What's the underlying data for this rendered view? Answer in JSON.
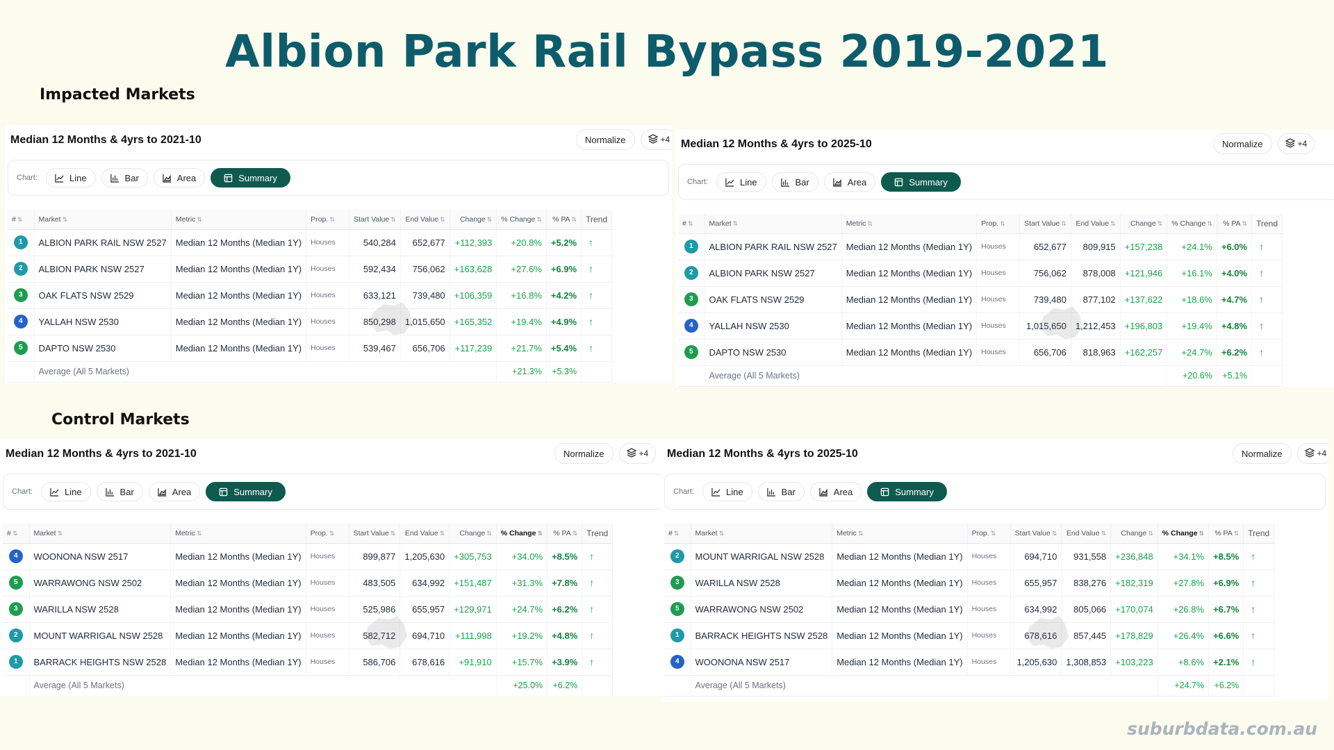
{
  "page": {
    "title": "Albion Park Rail Bypass 2019-2021",
    "impacted_label": "Impacted Markets",
    "control_label": "Control Markets",
    "brand": "suburbdata.com.au"
  },
  "colors": {
    "title": "#0d5c6b",
    "active_tab": "#0f5a4f",
    "positive": "#16a34a",
    "rank_teal": "#1e9aa8",
    "rank_blue": "#2563c4",
    "rank_green": "#1f9d4f"
  },
  "controls": {
    "normalize": "Normalize",
    "layers_count": "+4",
    "chart_label": "Chart:",
    "line": "Line",
    "bar": "Bar",
    "area": "Area",
    "summary": "Summary"
  },
  "columns": {
    "rank": "#",
    "market": "Market",
    "metric": "Metric",
    "prop": "Prop.",
    "start": "Start Value",
    "end": "End Value",
    "change": "Change",
    "pct": "% Change",
    "pa": "% PA",
    "trend": "Trend"
  },
  "panels": [
    {
      "id": "impacted-2021",
      "title": "Median 12 Months & 4yrs to 2021-10",
      "rows": [
        {
          "rank": "1",
          "rank_color": "teal",
          "market": "ALBION PARK RAIL NSW 2527",
          "metric": "Median 12 Months (Median 1Y)",
          "prop": "Houses",
          "start": "540,284",
          "end": "652,677",
          "change": "+112,393",
          "pct": "+20.8%",
          "pa": "+5.2%",
          "trend": "↑"
        },
        {
          "rank": "2",
          "rank_color": "teal",
          "market": "ALBION PARK NSW 2527",
          "metric": "Median 12 Months (Median 1Y)",
          "prop": "Houses",
          "start": "592,434",
          "end": "756,062",
          "change": "+163,628",
          "pct": "+27.6%",
          "pa": "+6.9%",
          "trend": "↑"
        },
        {
          "rank": "3",
          "rank_color": "green",
          "market": "OAK FLATS NSW 2529",
          "metric": "Median 12 Months (Median 1Y)",
          "prop": "Houses",
          "start": "633,121",
          "end": "739,480",
          "change": "+106,359",
          "pct": "+16.8%",
          "pa": "+4.2%",
          "trend": "↑"
        },
        {
          "rank": "4",
          "rank_color": "blue",
          "market": "YALLAH NSW 2530",
          "metric": "Median 12 Months (Median 1Y)",
          "prop": "Houses",
          "start": "850,298",
          "end": "1,015,650",
          "change": "+165,352",
          "pct": "+19.4%",
          "pa": "+4.9%",
          "trend": "↑"
        },
        {
          "rank": "5",
          "rank_color": "green",
          "market": "DAPTO NSW 2530",
          "metric": "Median 12 Months (Median 1Y)",
          "prop": "Houses",
          "start": "539,467",
          "end": "656,706",
          "change": "+117,239",
          "pct": "+21.7%",
          "pa": "+5.4%",
          "trend": "↑"
        }
      ],
      "average": {
        "label": "Average (All 5 Markets)",
        "pct": "+21.3%",
        "pa": "+5.3%"
      }
    },
    {
      "id": "impacted-2025",
      "title": "Median 12 Months & 4yrs to 2025-10",
      "rows": [
        {
          "rank": "1",
          "rank_color": "teal",
          "market": "ALBION PARK RAIL NSW 2527",
          "metric": "Median 12 Months (Median 1Y)",
          "prop": "Houses",
          "start": "652,677",
          "end": "809,915",
          "change": "+157,238",
          "pct": "+24.1%",
          "pa": "+6.0%",
          "trend": "↑"
        },
        {
          "rank": "2",
          "rank_color": "teal",
          "market": "ALBION PARK NSW 2527",
          "metric": "Median 12 Months (Median 1Y)",
          "prop": "Houses",
          "start": "756,062",
          "end": "878,008",
          "change": "+121,946",
          "pct": "+16.1%",
          "pa": "+4.0%",
          "trend": "↑"
        },
        {
          "rank": "3",
          "rank_color": "green",
          "market": "OAK FLATS NSW 2529",
          "metric": "Median 12 Months (Median 1Y)",
          "prop": "Houses",
          "start": "739,480",
          "end": "877,102",
          "change": "+137,622",
          "pct": "+18.6%",
          "pa": "+4.7%",
          "trend": "↑"
        },
        {
          "rank": "4",
          "rank_color": "blue",
          "market": "YALLAH NSW 2530",
          "metric": "Median 12 Months (Median 1Y)",
          "prop": "Houses",
          "start": "1,015,650",
          "end": "1,212,453",
          "change": "+196,803",
          "pct": "+19.4%",
          "pa": "+4.8%",
          "trend": "↑"
        },
        {
          "rank": "5",
          "rank_color": "green",
          "market": "DAPTO NSW 2530",
          "metric": "Median 12 Months (Median 1Y)",
          "prop": "Houses",
          "start": "656,706",
          "end": "818,963",
          "change": "+162,257",
          "pct": "+24.7%",
          "pa": "+6.2%",
          "trend": "↑"
        }
      ],
      "average": {
        "label": "Average (All 5 Markets)",
        "pct": "+20.6%",
        "pa": "+5.1%"
      }
    },
    {
      "id": "control-2021",
      "title": "Median 12 Months & 4yrs to 2021-10",
      "rows": [
        {
          "rank": "4",
          "rank_color": "blue",
          "market": "WOONONA NSW 2517",
          "metric": "Median 12 Months (Median 1Y)",
          "prop": "Houses",
          "start": "899,877",
          "end": "1,205,630",
          "change": "+305,753",
          "pct": "+34.0%",
          "pa": "+8.5%",
          "trend": "↑"
        },
        {
          "rank": "5",
          "rank_color": "green",
          "market": "WARRAWONG NSW 2502",
          "metric": "Median 12 Months (Median 1Y)",
          "prop": "Houses",
          "start": "483,505",
          "end": "634,992",
          "change": "+151,487",
          "pct": "+31.3%",
          "pa": "+7.8%",
          "trend": "↑"
        },
        {
          "rank": "3",
          "rank_color": "green",
          "market": "WARILLA NSW 2528",
          "metric": "Median 12 Months (Median 1Y)",
          "prop": "Houses",
          "start": "525,986",
          "end": "655,957",
          "change": "+129,971",
          "pct": "+24.7%",
          "pa": "+6.2%",
          "trend": "↑"
        },
        {
          "rank": "2",
          "rank_color": "teal",
          "market": "MOUNT WARRIGAL NSW 2528",
          "metric": "Median 12 Months (Median 1Y)",
          "prop": "Houses",
          "start": "582,712",
          "end": "694,710",
          "change": "+111,998",
          "pct": "+19.2%",
          "pa": "+4.8%",
          "trend": "↑"
        },
        {
          "rank": "1",
          "rank_color": "teal",
          "market": "BARRACK HEIGHTS NSW 2528",
          "metric": "Median 12 Months (Median 1Y)",
          "prop": "Houses",
          "start": "586,706",
          "end": "678,616",
          "change": "+91,910",
          "pct": "+15.7%",
          "pa": "+3.9%",
          "trend": "↑"
        }
      ],
      "average": {
        "label": "Average (All 5 Markets)",
        "pct": "+25.0%",
        "pa": "+6.2%"
      }
    },
    {
      "id": "control-2025",
      "title": "Median 12 Months & 4yrs to 2025-10",
      "rows": [
        {
          "rank": "2",
          "rank_color": "teal",
          "market": "MOUNT WARRIGAL NSW 2528",
          "metric": "Median 12 Months (Median 1Y)",
          "prop": "Houses",
          "start": "694,710",
          "end": "931,558",
          "change": "+236,848",
          "pct": "+34.1%",
          "pa": "+8.5%",
          "trend": "↑"
        },
        {
          "rank": "3",
          "rank_color": "green",
          "market": "WARILLA NSW 2528",
          "metric": "Median 12 Months (Median 1Y)",
          "prop": "Houses",
          "start": "655,957",
          "end": "838,276",
          "change": "+182,319",
          "pct": "+27.8%",
          "pa": "+6.9%",
          "trend": "↑"
        },
        {
          "rank": "5",
          "rank_color": "green",
          "market": "WARRAWONG NSW 2502",
          "metric": "Median 12 Months (Median 1Y)",
          "prop": "Houses",
          "start": "634,992",
          "end": "805,066",
          "change": "+170,074",
          "pct": "+26.8%",
          "pa": "+6.7%",
          "trend": "↑"
        },
        {
          "rank": "1",
          "rank_color": "teal",
          "market": "BARRACK HEIGHTS NSW 2528",
          "metric": "Median 12 Months (Median 1Y)",
          "prop": "Houses",
          "start": "678,616",
          "end": "857,445",
          "change": "+178,829",
          "pct": "+26.4%",
          "pa": "+6.6%",
          "trend": "↑"
        },
        {
          "rank": "4",
          "rank_color": "blue",
          "market": "WOONONA NSW 2517",
          "metric": "Median 12 Months (Median 1Y)",
          "prop": "Houses",
          "start": "1,205,630",
          "end": "1,308,853",
          "change": "+103,223",
          "pct": "+8.6%",
          "pa": "+2.1%",
          "trend": "↑"
        }
      ],
      "average": {
        "label": "Average (All 5 Markets)",
        "pct": "+24.7%",
        "pa": "+6.2%"
      }
    }
  ]
}
